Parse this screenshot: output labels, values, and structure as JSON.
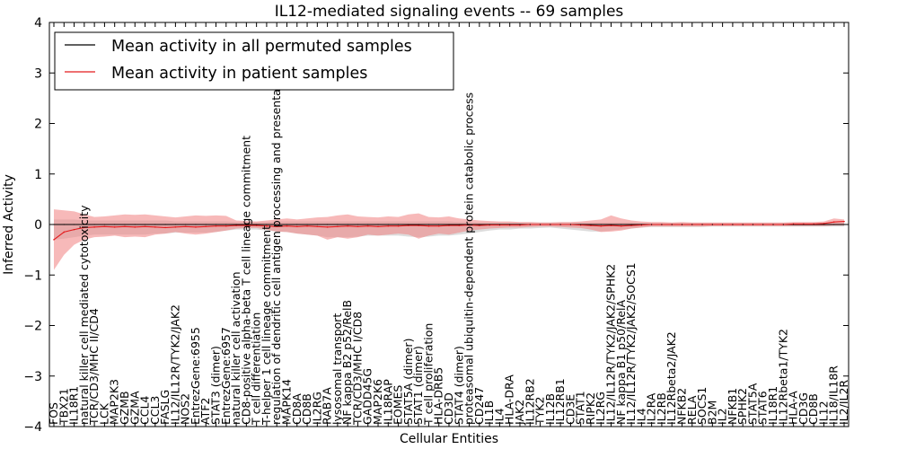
{
  "chart_data": {
    "type": "line",
    "title": "IL12-mediated signaling events -- 69 samples",
    "xlabel": "Cellular Entities",
    "ylabel": "Inferred Activity",
    "ylim": [
      -4,
      4
    ],
    "yticks": [
      -4,
      -3,
      -2,
      -1,
      0,
      1,
      2,
      3,
      4
    ],
    "yticklabels": [
      "−4",
      "−3",
      "−2",
      "−1",
      "0",
      "1",
      "2",
      "3",
      "4"
    ],
    "legend": {
      "location": "top-left",
      "entries": [
        {
          "label": "Mean activity in all permuted samples",
          "color": "#000000"
        },
        {
          "label": "Mean activity in patient samples",
          "color": "#e31a1c"
        }
      ]
    },
    "colors": {
      "patient": "#e31a1c",
      "patient_band": "#f08080",
      "permuted_band": "#bbbbbb",
      "permuted": "#000000"
    },
    "categories": [
      "FOS",
      "TBX21",
      "IL18R1",
      "natural killer cell mediated cytotoxicity",
      "TCR/CD3/MHC II/CD4",
      "LCK",
      "MAP2K3",
      "GZMB",
      "GZMA",
      "CCL4",
      "CCL3",
      "FASLG",
      "IL12/IL12R/TYK2/JAK2",
      "NOS2",
      "EntrezGene:6955",
      "ATF2",
      "STAT3 (dimer)",
      "EntrezGene:6957",
      "natural killer cell activation",
      "CD8-positive alpha-beta T cell lineage commitment",
      "T cell differentiation",
      "T-helper 1 cell lineage commitment",
      "regulation of dendritic cell antigen processing and presentation",
      "MAPK14",
      "CD8A",
      "CD8B",
      "IL2RG",
      "RAB7A",
      "lysosomal transport",
      "NF kappa B2 p52/RelB",
      "TCR/CD3/MHC I/CD8",
      "GADD45G",
      "MAP2K6",
      "IL18RAP",
      "EOMES",
      "STAT5A (dimer)",
      "STAT1 (dimer)",
      "T cell proliferation",
      "HLA-DRB5",
      "CD3D",
      "STAT4 (dimer)",
      "proteasomal ubiquitin-dependent protein catabolic process",
      "CD247",
      "IL1B",
      "IL4",
      "HLA-DRA",
      "JAK2",
      "IL12RB2",
      "TYK2",
      "IL12B",
      "IL12RB1",
      "CD3E",
      "STAT1",
      "RIPK2",
      "IL2RG",
      "IL12/IL12R/TYK2/JAK2/SPHK2",
      "NF kappa B1 p50/RelA",
      "IL12/IL12R/TYK2/JAK2/SOCS1",
      "IL4",
      "IL2RA",
      "IL2RB",
      "IL12Rbeta2/JAK2",
      "NFKB2",
      "RELA",
      "SOCS1",
      "B2M",
      "IL2",
      "NFKB1",
      "SPHK2",
      "STAT5A",
      "STAT6",
      "IL18R1",
      "IL12Rbeta1/TYK2",
      "HLA-A",
      "CD3G",
      "CD8B",
      "IL12",
      "IL18/IL18R",
      "IL2/IL2R"
    ],
    "x": [
      0,
      1,
      2,
      3,
      4,
      5,
      6,
      7,
      8,
      9,
      10,
      11,
      12,
      13,
      14,
      15,
      16,
      17,
      18,
      19,
      20,
      21,
      22,
      23,
      24,
      25,
      26,
      27,
      28,
      29,
      30,
      31,
      32,
      33,
      34,
      35,
      36,
      37,
      38,
      39,
      40,
      41,
      42,
      43,
      44,
      45,
      46,
      47,
      48,
      49,
      50,
      51,
      52,
      53,
      54,
      55,
      56,
      57,
      58,
      59,
      60,
      61,
      62,
      63,
      64,
      65,
      66,
      67,
      68,
      69,
      70,
      71,
      72,
      73,
      74,
      75,
      76,
      77,
      78
    ],
    "series": [
      {
        "name": "Mean activity in patient samples",
        "values": [
          -0.3,
          -0.15,
          -0.1,
          -0.06,
          -0.05,
          -0.04,
          -0.05,
          -0.04,
          -0.05,
          -0.04,
          -0.05,
          -0.06,
          -0.05,
          -0.04,
          -0.05,
          -0.04,
          -0.03,
          -0.03,
          -0.02,
          -0.02,
          -0.02,
          -0.03,
          -0.04,
          -0.03,
          -0.04,
          -0.03,
          -0.04,
          -0.05,
          -0.04,
          -0.03,
          -0.04,
          -0.03,
          -0.04,
          -0.03,
          -0.03,
          -0.02,
          -0.02,
          -0.03,
          -0.03,
          -0.02,
          -0.02,
          -0.01,
          -0.02,
          -0.01,
          -0.01,
          -0.01,
          -0.01,
          0,
          0,
          0,
          0,
          0,
          -0.01,
          -0.02,
          -0.03,
          -0.02,
          -0.03,
          -0.02,
          -0.01,
          0,
          0,
          0,
          0,
          0,
          0,
          0,
          0,
          0,
          0,
          0,
          0,
          0,
          0,
          0.01,
          0.01,
          0.01,
          0.02,
          0.05,
          0.06
        ],
        "upper": [
          0.3,
          0.28,
          0.26,
          0.2,
          0.15,
          0.16,
          0.18,
          0.2,
          0.19,
          0.2,
          0.18,
          0.16,
          0.14,
          0.16,
          0.18,
          0.17,
          0.18,
          0.17,
          0.08,
          0.07,
          0.06,
          0.08,
          0.1,
          0.12,
          0.1,
          0.12,
          0.14,
          0.15,
          0.18,
          0.2,
          0.16,
          0.15,
          0.14,
          0.16,
          0.15,
          0.2,
          0.22,
          0.15,
          0.14,
          0.16,
          0.12,
          0.1,
          0.08,
          0.07,
          0.06,
          0.06,
          0.05,
          0.05,
          0.04,
          0.04,
          0.05,
          0.05,
          0.06,
          0.08,
          0.1,
          0.18,
          0.12,
          0.08,
          0.06,
          0.05,
          0.05,
          0.04,
          0.05,
          0.04,
          0.04,
          0.04,
          0.04,
          0.04,
          0.04,
          0.04,
          0.04,
          0.04,
          0.04,
          0.05,
          0.05,
          0.05,
          0.06,
          0.12,
          0.1
        ],
        "lower": [
          -0.9,
          -0.6,
          -0.4,
          -0.3,
          -0.25,
          -0.24,
          -0.22,
          -0.25,
          -0.24,
          -0.25,
          -0.2,
          -0.18,
          -0.15,
          -0.18,
          -0.2,
          -0.18,
          -0.15,
          -0.12,
          -0.08,
          -0.07,
          -0.07,
          -0.1,
          -0.14,
          -0.15,
          -0.18,
          -0.2,
          -0.22,
          -0.3,
          -0.25,
          -0.28,
          -0.25,
          -0.2,
          -0.22,
          -0.2,
          -0.18,
          -0.2,
          -0.28,
          -0.22,
          -0.18,
          -0.2,
          -0.16,
          -0.12,
          -0.1,
          -0.08,
          -0.07,
          -0.06,
          -0.06,
          -0.05,
          -0.04,
          -0.04,
          -0.05,
          -0.06,
          -0.07,
          -0.1,
          -0.15,
          -0.14,
          -0.12,
          -0.08,
          -0.06,
          -0.04,
          -0.04,
          -0.04,
          -0.04,
          -0.04,
          -0.04,
          -0.03,
          -0.03,
          -0.03,
          -0.03,
          -0.03,
          -0.03,
          -0.03,
          -0.03,
          -0.03,
          -0.03,
          -0.03,
          -0.03,
          -0.02,
          -0.02
        ]
      },
      {
        "name": "Mean activity in all permuted samples",
        "values": [
          0,
          0,
          0,
          0,
          0,
          0,
          0,
          0,
          0,
          0,
          0,
          0,
          0,
          0,
          0,
          0,
          0,
          0,
          0,
          0,
          0,
          0,
          0,
          0,
          0,
          0,
          0,
          0,
          0,
          0,
          0,
          0,
          0,
          0,
          0,
          0,
          0,
          0,
          0,
          0,
          0,
          0,
          0,
          0,
          0,
          0,
          0,
          0,
          0,
          0,
          0,
          0,
          0,
          0,
          0,
          0,
          0,
          0,
          0,
          0,
          0,
          0,
          0,
          0,
          0,
          0,
          0,
          0,
          0,
          0,
          0,
          0,
          0,
          0,
          0,
          0,
          0,
          0,
          0
        ],
        "upper": [
          0.1,
          0.1,
          0.1,
          0.08,
          0.08,
          0.08,
          0.08,
          0.08,
          0.08,
          0.08,
          0.08,
          0.08,
          0.06,
          0.06,
          0.06,
          0.06,
          0.06,
          0.06,
          0.05,
          0.05,
          0.05,
          0.05,
          0.06,
          0.06,
          0.06,
          0.06,
          0.06,
          0.06,
          0.06,
          0.06,
          0.06,
          0.06,
          0.06,
          0.06,
          0.06,
          0.06,
          0.06,
          0.06,
          0.06,
          0.06,
          0.05,
          0.05,
          0.04,
          0.04,
          0.04,
          0.04,
          0.04,
          0.04,
          0.04,
          0.04,
          0.04,
          0.04,
          0.04,
          0.04,
          0.04,
          0.04,
          0.04,
          0.04,
          0.03,
          0.03,
          0.03,
          0.03,
          0.03,
          0.03,
          0.03,
          0.03,
          0.03,
          0.03,
          0.03,
          0.03,
          0.03,
          0.03,
          0.03,
          0.03,
          0.03,
          0.03,
          0.03,
          0.03,
          0.03
        ],
        "lower": [
          -0.3,
          -0.28,
          -0.25,
          -0.22,
          -0.2,
          -0.2,
          -0.2,
          -0.2,
          -0.2,
          -0.2,
          -0.18,
          -0.18,
          -0.16,
          -0.16,
          -0.16,
          -0.16,
          -0.15,
          -0.12,
          -0.1,
          -0.1,
          -0.1,
          -0.12,
          -0.14,
          -0.15,
          -0.18,
          -0.2,
          -0.22,
          -0.25,
          -0.25,
          -0.25,
          -0.24,
          -0.22,
          -0.22,
          -0.22,
          -0.22,
          -0.24,
          -0.25,
          -0.24,
          -0.22,
          -0.22,
          -0.2,
          -0.18,
          -0.15,
          -0.12,
          -0.1,
          -0.1,
          -0.08,
          -0.08,
          -0.07,
          -0.06,
          -0.08,
          -0.1,
          -0.12,
          -0.14,
          -0.14,
          -0.12,
          -0.1,
          -0.08,
          -0.06,
          -0.05,
          -0.05,
          -0.05,
          -0.05,
          -0.05,
          -0.05,
          -0.04,
          -0.04,
          -0.04,
          -0.04,
          -0.04,
          -0.04,
          -0.04,
          -0.04,
          -0.04,
          -0.04,
          -0.04,
          -0.04,
          -0.04,
          -0.04
        ]
      }
    ]
  }
}
